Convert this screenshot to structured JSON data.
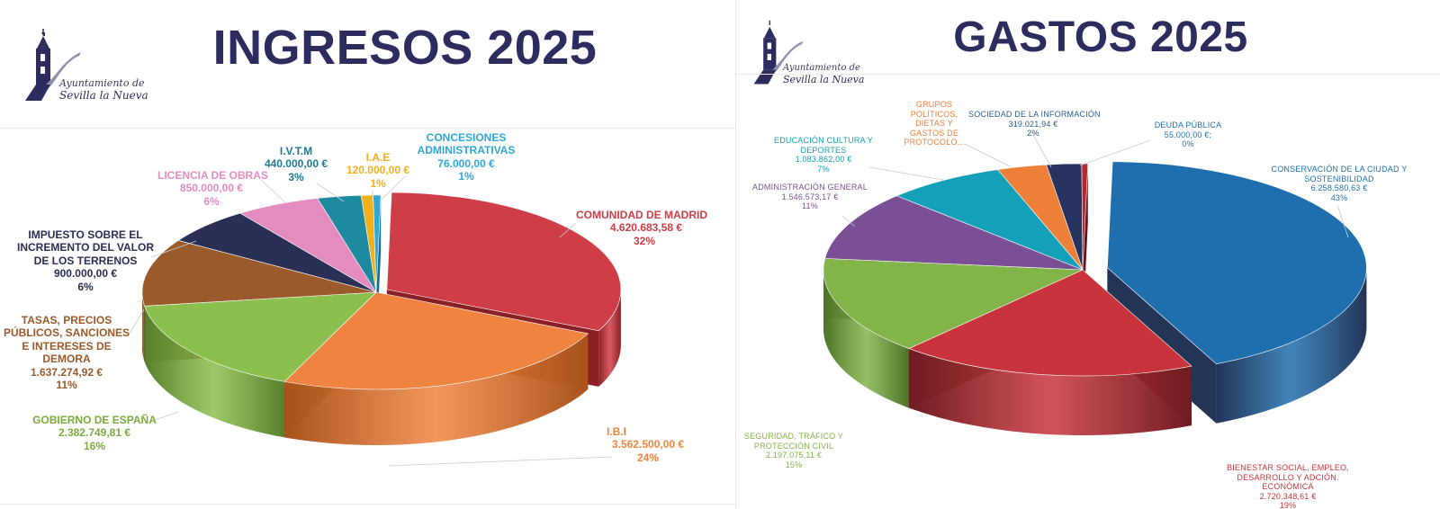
{
  "colors": {
    "title": "#2c2c5e"
  },
  "logo": {
    "icon": "church-tower-icon",
    "line1": "Ayuntamiento de",
    "line2": "Sevilla la Nueva"
  },
  "ingresos": {
    "title": "INGRESOS 2025"
  },
  "gastos": {
    "title": "GASTOS 2025"
  },
  "chart_data": [
    {
      "type": "pie",
      "title": "INGRESOS 2025",
      "slices": [
        {
          "label": "COMUNIDAD DE MADRID",
          "amount": "4.620.683,58 €",
          "percent": "32%",
          "value": 4620683.58,
          "color": "#cf3d46",
          "dark": "#8a1f26"
        },
        {
          "label": "I.B.I",
          "amount": "3.562.500,00 €",
          "percent": "24%",
          "value": 3562500.0,
          "color": "#ef8440",
          "dark": "#a8521c"
        },
        {
          "label": "GOBIERNO DE ESPAÑA",
          "amount": "2.382.749,81 €",
          "percent": "16%",
          "value": 2382749.81,
          "color": "#8cc04e",
          "dark": "#56802a"
        },
        {
          "label": "TASAS, PRECIOS PÚBLICOS, SANCIONES E INTERESES DE DEMORA",
          "amount": "1.637.274,92 €",
          "percent": "11%",
          "value": 1637274.92,
          "color": "#9a5a2c",
          "dark": "#5e3315"
        },
        {
          "label": "IMPUESTO SOBRE EL INCREMENTO DEL VALOR DE LOS TERRENOS",
          "amount": "900.000,00 €",
          "percent": "6%",
          "value": 900000.0,
          "color": "#2a3055",
          "dark": "#14182e"
        },
        {
          "label": "LICENCIA DE OBRAS",
          "amount": "850.000,00 €",
          "percent": "6%",
          "value": 850000.0,
          "color": "#e48cc0",
          "dark": "#a0557f"
        },
        {
          "label": "I.V.T.M",
          "amount": "440.000,00 €",
          "percent": "3%",
          "value": 440000.0,
          "color": "#1d8aa0",
          "dark": "#0e5563"
        },
        {
          "label": "I.A.E",
          "amount": "120.000,00 €",
          "percent": "1%",
          "value": 120000.0,
          "color": "#f2b01c",
          "dark": "#a8780a"
        },
        {
          "label": "CONCESIONES ADMINISTRATIVAS",
          "amount": "76.000,00 €",
          "percent": "1%",
          "value": 76000.0,
          "color": "#2fa8d8",
          "dark": "#176f92"
        }
      ]
    },
    {
      "type": "pie",
      "title": "GASTOS 2025",
      "slices": [
        {
          "label": "CONSERVACIÓN DE LA CIUDAD Y SOSTENIBILIDAD",
          "amount": "6.258.580,63 €",
          "percent": "43%",
          "value": 6258580.63,
          "color": "#1f6fae",
          "dark": "#233457"
        },
        {
          "label": "BIENESTAR SOCIAL, EMPLEO, DESARROLLO Y ADCIÓN. ECONÓMICA",
          "amount": "2.720.348,61 €",
          "percent": "19%",
          "value": 2720348.61,
          "color": "#c9343c",
          "dark": "#6e1c22"
        },
        {
          "label": "SEGURIDAD, TRÁFICO Y PROTECCIÓN CIVIL",
          "amount": "2.197.075,11 €",
          "percent": "15%",
          "value": 2197075.11,
          "color": "#82b44a",
          "dark": "#4c7326"
        },
        {
          "label": "ADMINISTRACIÓN GENERAL",
          "amount": "1.546.573,17 €",
          "percent": "11%",
          "value": 1546573.17,
          "color": "#7b4f96",
          "dark": "#4a2c5e"
        },
        {
          "label": "EDUCACIÓN CULTURA Y DEPORTES",
          "amount": "1.083.862,00 €",
          "percent": "7%",
          "value": 1083862.0,
          "color": "#13a0b8",
          "dark": "#0b6778"
        },
        {
          "label": "GRUPOS POLÍTICOS, DIETAS Y GASTOS DE PROTOCOLO...",
          "amount": "",
          "percent": "",
          "value": 450000,
          "color": "#ee7f38",
          "dark": "#a4501c"
        },
        {
          "label": "SOCIEDAD DE LA INFORMACIÓN",
          "amount": "319.021,94 €",
          "percent": "2%",
          "value": 319021.94,
          "color": "#25335e",
          "dark": "#121a33"
        },
        {
          "label": "DEUDA PÚBLICA",
          "amount": "55.000,00 €;",
          "percent": "0%",
          "value": 55000.0,
          "color": "#b4282e",
          "dark": "#6a1216"
        }
      ]
    }
  ]
}
